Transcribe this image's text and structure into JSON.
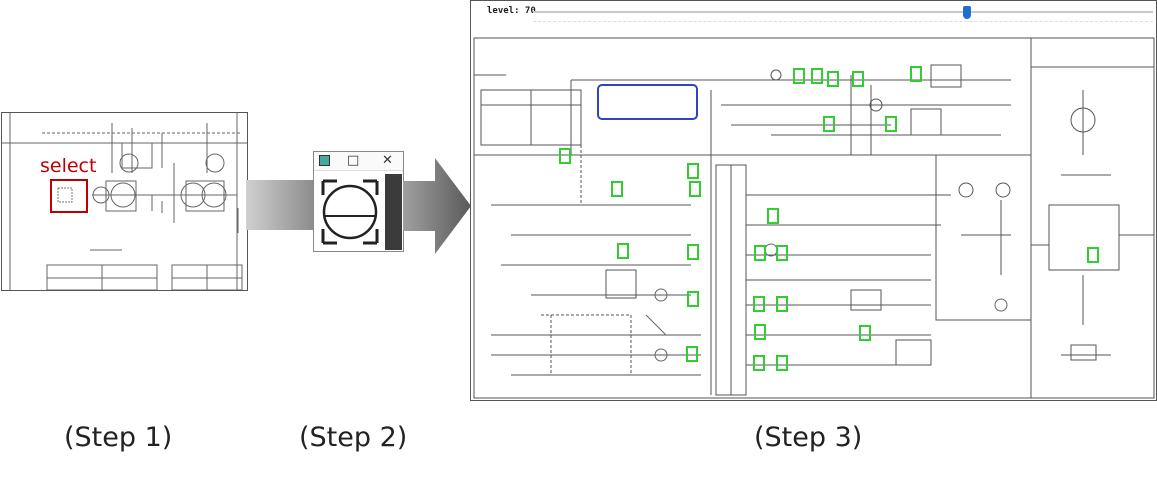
{
  "steps": {
    "step1": "(Step 1)",
    "step2": "(Step 2)",
    "step3": "(Step 3)"
  },
  "step1_panel": {
    "select_label": "select",
    "accent_color": "#c00000"
  },
  "step2_window": {
    "controls": {
      "minimize": "□",
      "close": "✕"
    }
  },
  "step3_panel": {
    "level_label": "level: 70",
    "level_value": 70,
    "level_max": 100,
    "highlight_color": "#33cc33",
    "selection_color": "#3344bb"
  }
}
